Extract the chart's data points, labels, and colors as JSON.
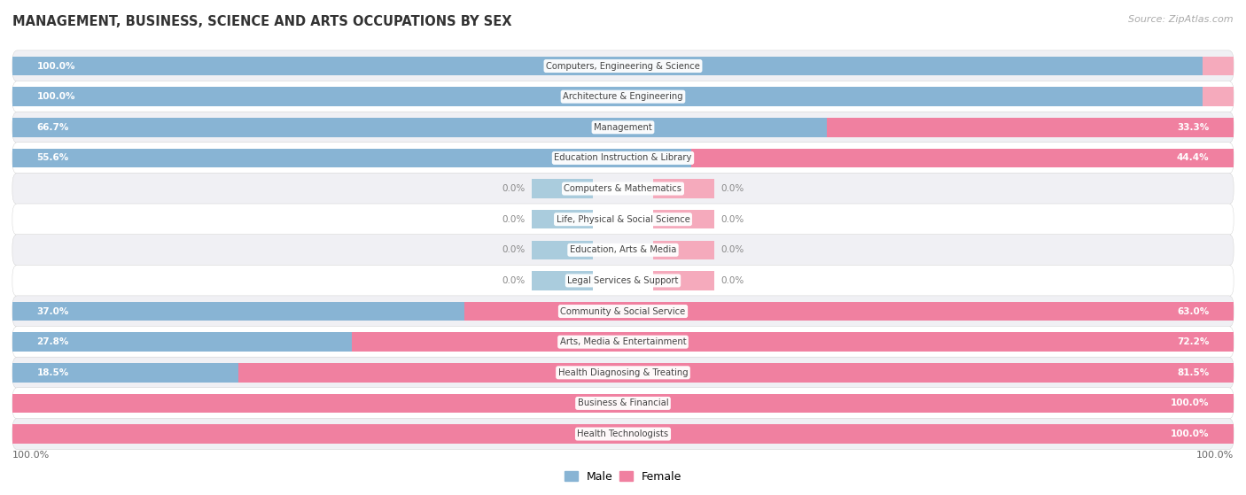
{
  "title": "MANAGEMENT, BUSINESS, SCIENCE AND ARTS OCCUPATIONS BY SEX",
  "source": "Source: ZipAtlas.com",
  "categories": [
    "Computers, Engineering & Science",
    "Architecture & Engineering",
    "Management",
    "Education Instruction & Library",
    "Computers & Mathematics",
    "Life, Physical & Social Science",
    "Education, Arts & Media",
    "Legal Services & Support",
    "Community & Social Service",
    "Arts, Media & Entertainment",
    "Health Diagnosing & Treating",
    "Business & Financial",
    "Health Technologists"
  ],
  "male_pct": [
    100.0,
    100.0,
    66.7,
    55.6,
    0.0,
    0.0,
    0.0,
    0.0,
    37.0,
    27.8,
    18.5,
    0.0,
    0.0
  ],
  "female_pct": [
    0.0,
    0.0,
    33.3,
    44.4,
    0.0,
    0.0,
    0.0,
    0.0,
    63.0,
    72.2,
    81.5,
    100.0,
    100.0
  ],
  "male_color": "#88b4d4",
  "female_color": "#f080a0",
  "male_stub_color": "#aaccdd",
  "female_stub_color": "#f5aabc",
  "row_bg_odd": "#f0f0f4",
  "row_bg_even": "#ffffff",
  "title_color": "#333333",
  "source_color": "#aaaaaa",
  "legend_male_color": "#88b4d4",
  "legend_female_color": "#f080a0",
  "total_width": 100.0,
  "stub_size": 5.0,
  "bar_height": 0.62
}
